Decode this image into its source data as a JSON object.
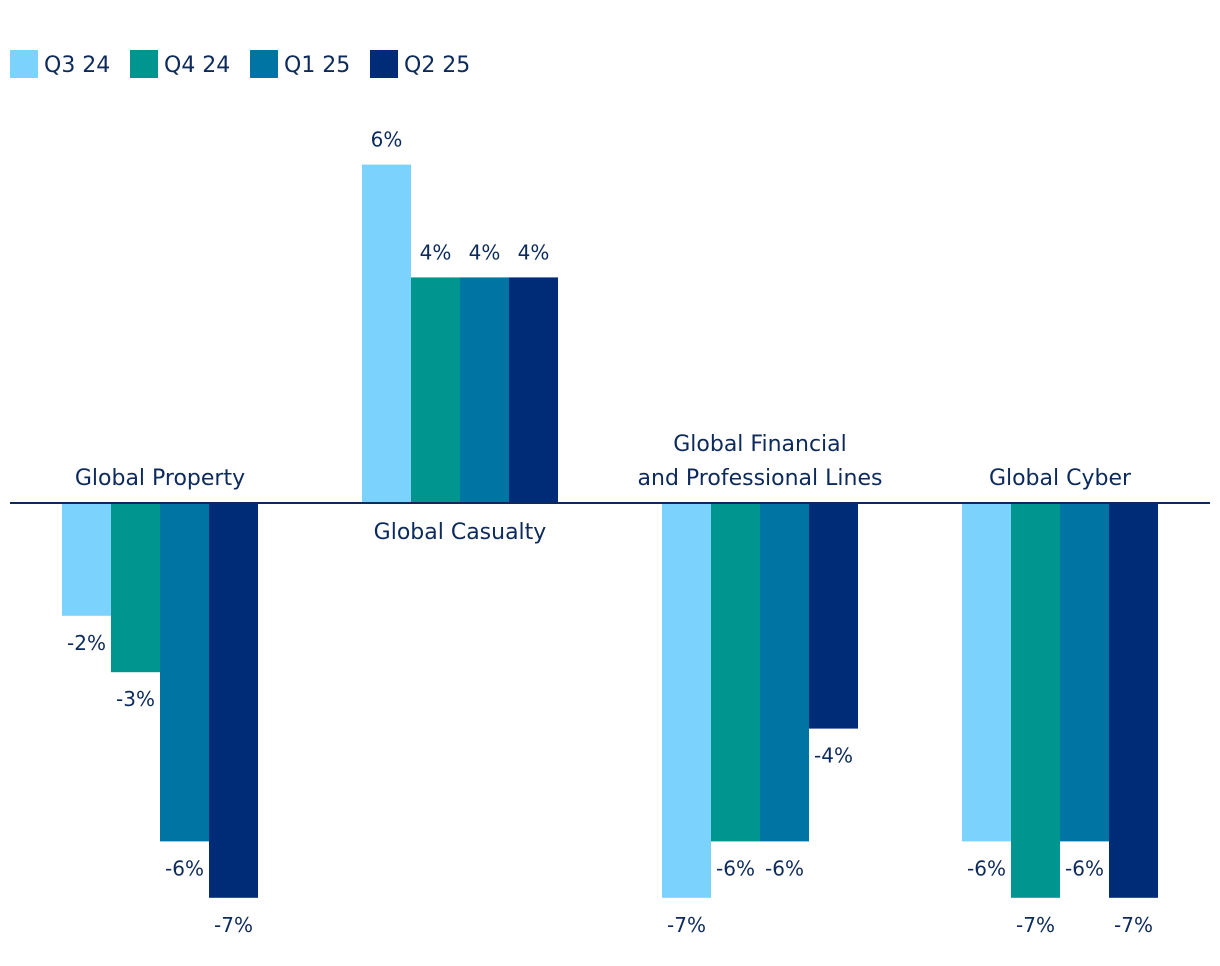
{
  "chart_data": {
    "type": "bar",
    "title": "",
    "xlabel": "",
    "ylabel": "",
    "ylim": [
      -7,
      6
    ],
    "grid": false,
    "legend_position": "top-left",
    "categories": [
      "Global Property",
      "Global Casualty",
      "Global Financial and Professional Lines",
      "Global Cyber"
    ],
    "category_display": [
      [
        "Global Property"
      ],
      [
        "Global Casualty"
      ],
      [
        "Global Financial",
        "and Professional Lines"
      ],
      [
        "Global Cyber"
      ]
    ],
    "series": [
      {
        "name": "Q3 24",
        "color": "#7bd3fd",
        "values": [
          -2,
          6,
          -7,
          -6
        ]
      },
      {
        "name": "Q4 24",
        "color": "#00968f",
        "values": [
          -3,
          4,
          -6,
          -7
        ]
      },
      {
        "name": "Q1 25",
        "color": "#0075a4",
        "values": [
          -6,
          4,
          -6,
          -6
        ]
      },
      {
        "name": "Q2 25",
        "color": "#002c77",
        "values": [
          -7,
          4,
          -4,
          -7
        ]
      }
    ],
    "value_suffix": "%",
    "text_color": "#0d2a5c",
    "axis_color": "#0d2a5c"
  }
}
